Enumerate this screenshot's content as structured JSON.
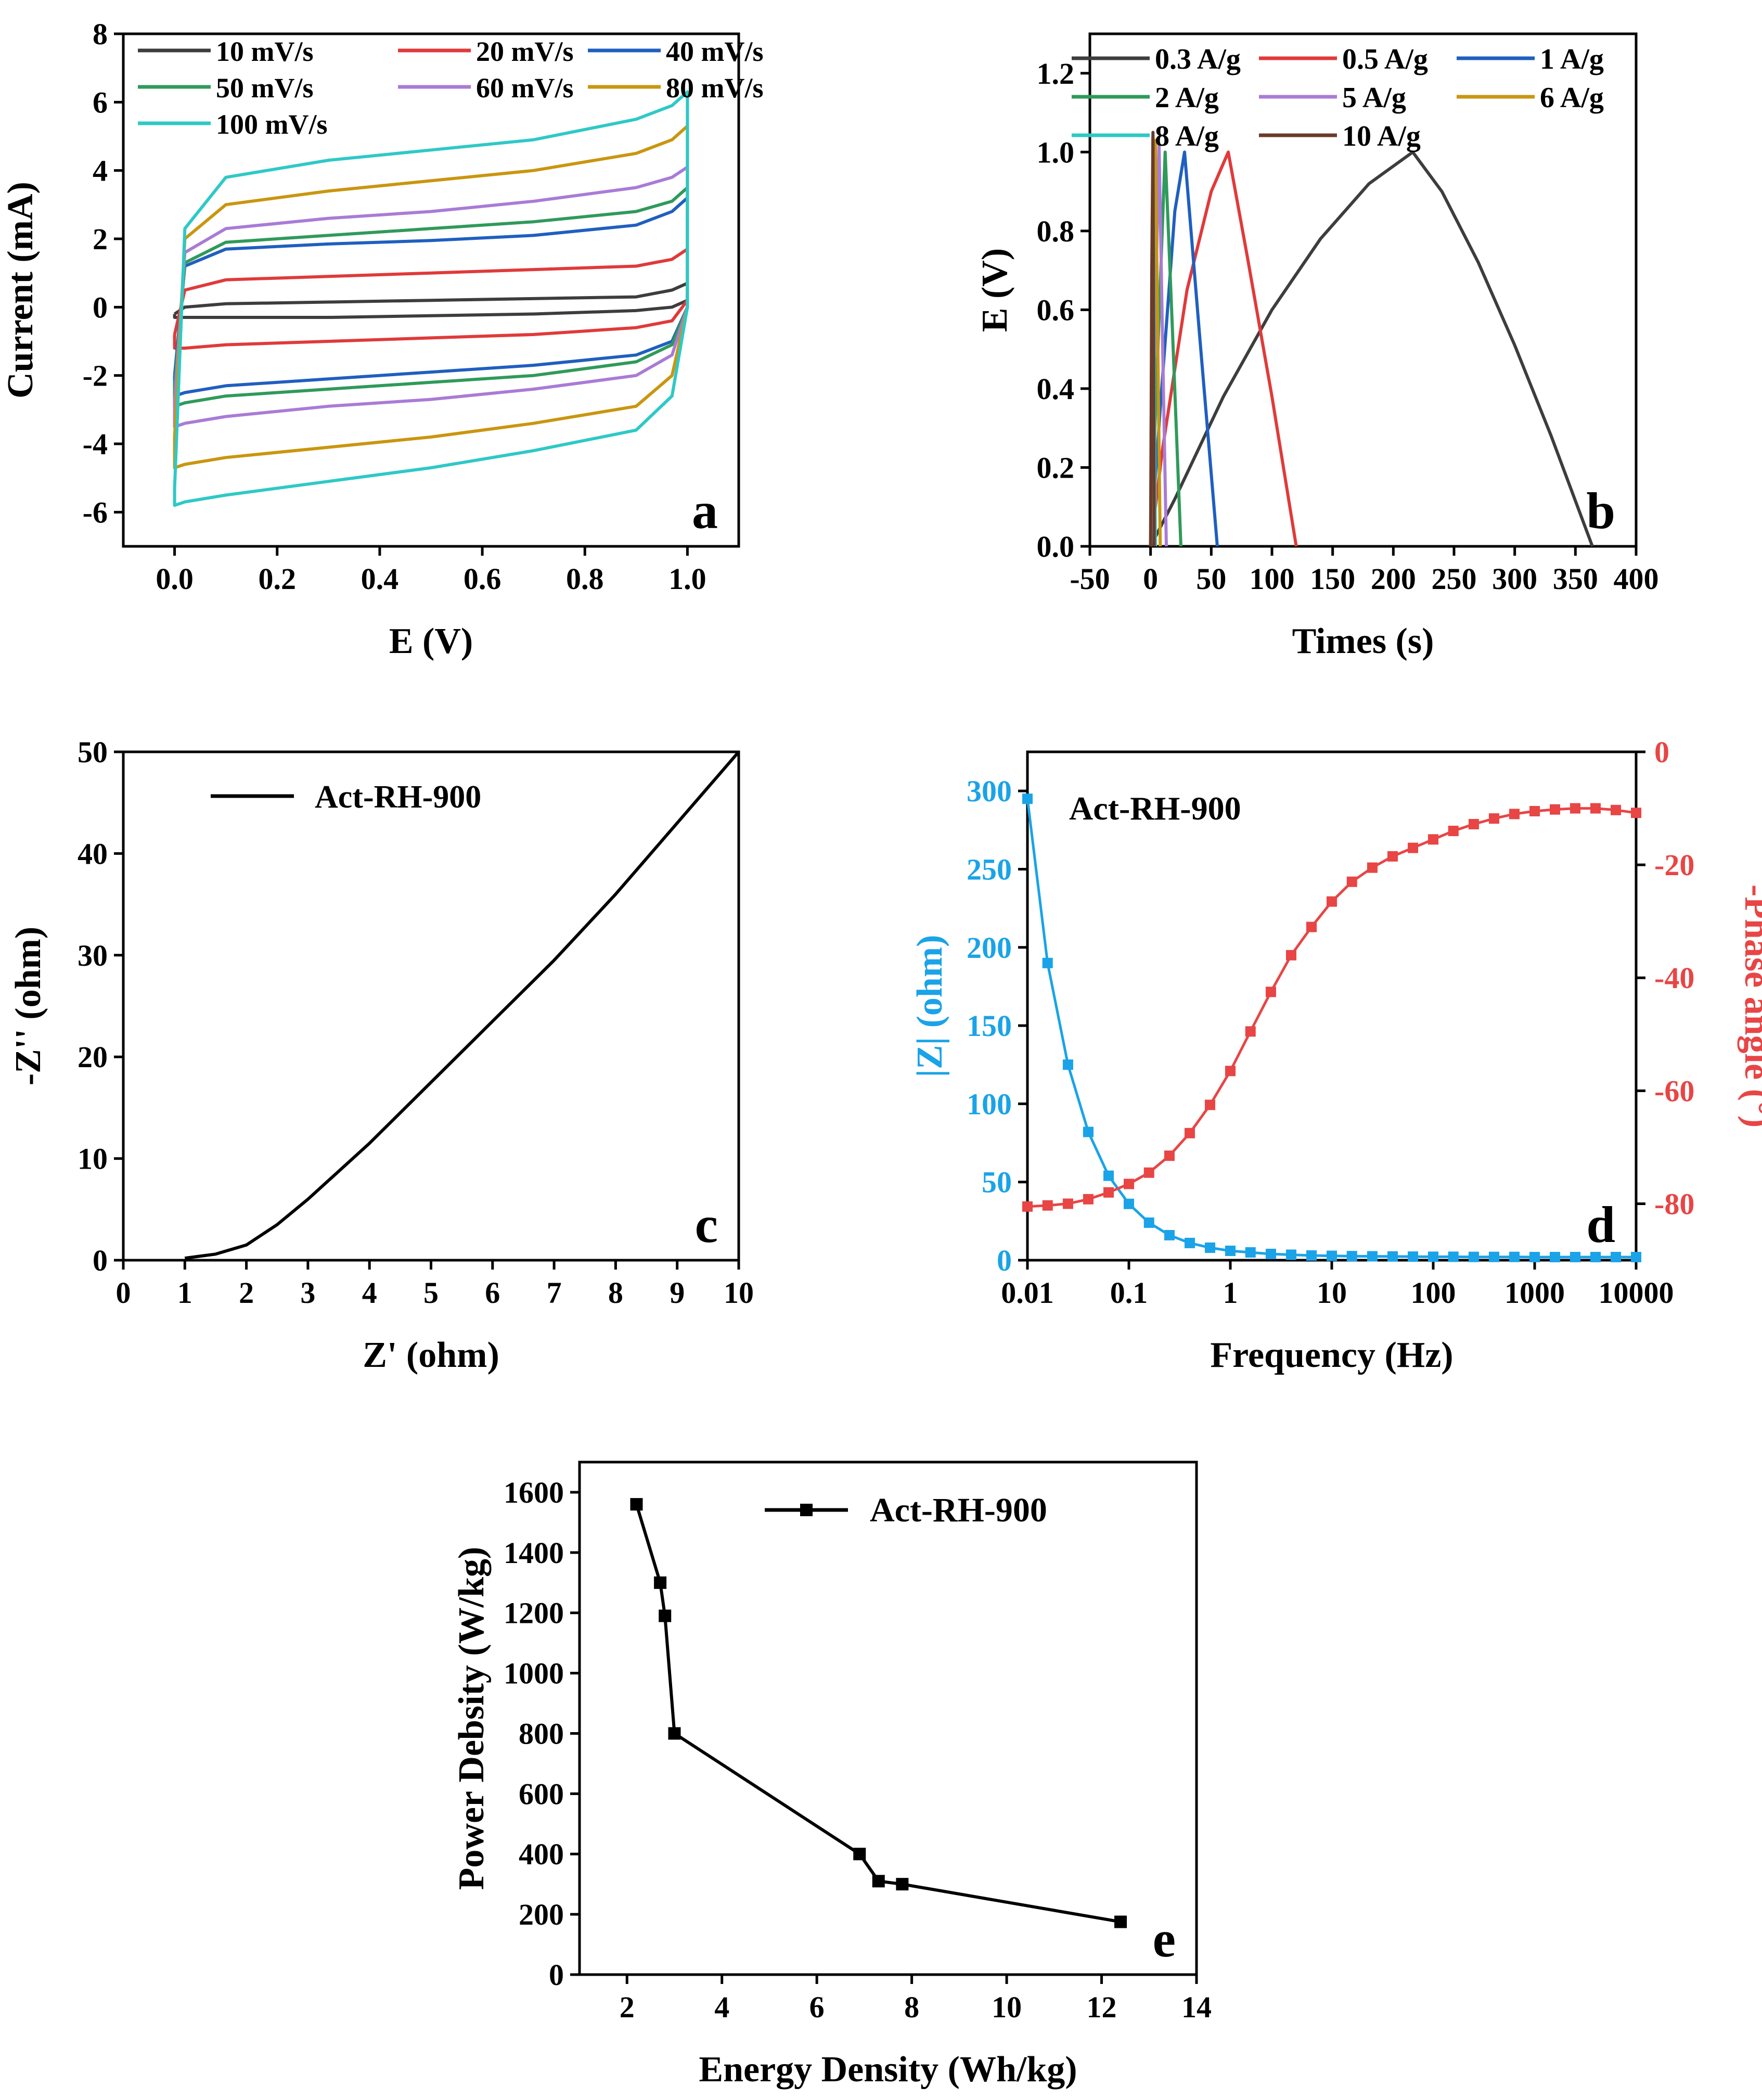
{
  "colors": {
    "black": "#3d3d3d",
    "red": "#e03a3a",
    "blue": "#1f5fbf",
    "green": "#2f9a5a",
    "purple": "#a97bd6",
    "gold": "#c9960f",
    "cyan": "#2ec9c6",
    "brown": "#6b3a2a",
    "impedance": "#1aa3e8",
    "phase": "#e84545"
  },
  "chart_data": [
    {
      "panel": "a",
      "type": "line",
      "xlabel": "E (V)",
      "ylabel": "Current (mA)",
      "xlim": [
        -0.1,
        1.1
      ],
      "ylim": [
        -7,
        8
      ],
      "xticks": [
        "0.0",
        "0.2",
        "0.4",
        "0.6",
        "0.8",
        "1.0"
      ],
      "yticks": [
        "-6",
        "-4",
        "-2",
        "0",
        "2",
        "4",
        "6",
        "8"
      ],
      "legend_location": "top",
      "series": [
        {
          "name": "10 mV/s",
          "color": "black",
          "x": [
            0,
            0.02,
            0.1,
            0.3,
            0.5,
            0.7,
            0.9,
            0.97,
            1.0
          ],
          "upper": [
            -0.2,
            0.0,
            0.1,
            0.15,
            0.2,
            0.25,
            0.3,
            0.5,
            0.7
          ],
          "lower": [
            -0.3,
            -0.3,
            -0.3,
            -0.3,
            -0.25,
            -0.2,
            -0.1,
            0.0,
            0.2
          ]
        },
        {
          "name": "20 mV/s",
          "color": "red",
          "x": [
            0,
            0.02,
            0.1,
            0.3,
            0.5,
            0.7,
            0.9,
            0.97,
            1.0
          ],
          "upper": [
            -0.8,
            0.5,
            0.8,
            0.9,
            1.0,
            1.1,
            1.2,
            1.4,
            1.7
          ],
          "lower": [
            -1.2,
            -1.2,
            -1.1,
            -1.0,
            -0.9,
            -0.8,
            -0.6,
            -0.4,
            0.2
          ]
        },
        {
          "name": "40 mV/s",
          "color": "blue",
          "x": [
            0,
            0.02,
            0.1,
            0.3,
            0.5,
            0.7,
            0.9,
            0.97,
            1.0
          ],
          "upper": [
            -2.0,
            1.2,
            1.7,
            1.85,
            1.95,
            2.1,
            2.4,
            2.8,
            3.2
          ],
          "lower": [
            -2.6,
            -2.5,
            -2.3,
            -2.1,
            -1.9,
            -1.7,
            -1.4,
            -1.0,
            0.0
          ]
        },
        {
          "name": "50 mV/s",
          "color": "green",
          "x": [
            0,
            0.02,
            0.1,
            0.3,
            0.5,
            0.7,
            0.9,
            0.97,
            1.0
          ],
          "upper": [
            -2.3,
            1.3,
            1.9,
            2.1,
            2.3,
            2.5,
            2.8,
            3.1,
            3.5
          ],
          "lower": [
            -2.9,
            -2.8,
            -2.6,
            -2.4,
            -2.2,
            -2.0,
            -1.6,
            -1.1,
            0.0
          ]
        },
        {
          "name": "60 mV/s",
          "color": "purple",
          "x": [
            0,
            0.02,
            0.1,
            0.3,
            0.5,
            0.7,
            0.9,
            0.97,
            1.0
          ],
          "upper": [
            -2.8,
            1.6,
            2.3,
            2.6,
            2.8,
            3.1,
            3.5,
            3.8,
            4.1
          ],
          "lower": [
            -3.5,
            -3.4,
            -3.2,
            -2.9,
            -2.7,
            -2.4,
            -2.0,
            -1.4,
            0.0
          ]
        },
        {
          "name": "80 mV/s",
          "color": "gold",
          "x": [
            0,
            0.02,
            0.1,
            0.3,
            0.5,
            0.7,
            0.9,
            0.97,
            1.0
          ],
          "upper": [
            -3.8,
            2.0,
            3.0,
            3.4,
            3.7,
            4.0,
            4.5,
            4.9,
            5.3
          ],
          "lower": [
            -4.7,
            -4.6,
            -4.4,
            -4.1,
            -3.8,
            -3.4,
            -2.9,
            -2.0,
            0.0
          ]
        },
        {
          "name": "100 mV/s",
          "color": "cyan",
          "x": [
            0,
            0.02,
            0.1,
            0.3,
            0.5,
            0.7,
            0.9,
            0.97,
            1.0
          ],
          "upper": [
            -5.3,
            2.3,
            3.8,
            4.3,
            4.6,
            4.9,
            5.5,
            5.9,
            6.3
          ],
          "lower": [
            -5.8,
            -5.7,
            -5.5,
            -5.1,
            -4.7,
            -4.2,
            -3.6,
            -2.6,
            0.0
          ]
        }
      ]
    },
    {
      "panel": "b",
      "type": "line",
      "xlabel": "Times (s)",
      "ylabel": "E (V)",
      "xlim": [
        -50,
        400
      ],
      "ylim": [
        0,
        1.3
      ],
      "xticks": [
        "-50",
        "0",
        "50",
        "100",
        "150",
        "200",
        "250",
        "300",
        "350",
        "400"
      ],
      "yticks": [
        "0.0",
        "0.2",
        "0.4",
        "0.6",
        "0.8",
        "1.0",
        "1.2"
      ],
      "legend_location": "top",
      "series": [
        {
          "name": "0.3 A/g",
          "color": "black",
          "x": [
            0,
            20,
            60,
            100,
            140,
            180,
            216,
            240,
            270,
            300,
            330,
            364
          ],
          "y": [
            0.0,
            0.12,
            0.38,
            0.6,
            0.78,
            0.92,
            1.0,
            0.9,
            0.72,
            0.51,
            0.28,
            0.0
          ]
        },
        {
          "name": "0.5 A/g",
          "color": "red",
          "x": [
            0,
            10,
            30,
            50,
            64,
            80,
            100,
            120
          ],
          "y": [
            0.0,
            0.25,
            0.65,
            0.9,
            1.0,
            0.73,
            0.38,
            0.0
          ]
        },
        {
          "name": "1 A/g",
          "color": "blue",
          "x": [
            0,
            8,
            20,
            28,
            40,
            55
          ],
          "y": [
            0.0,
            0.35,
            0.85,
            1.0,
            0.55,
            0.0
          ]
        },
        {
          "name": "2 A/g",
          "color": "green",
          "x": [
            0,
            6,
            12,
            18,
            25
          ],
          "y": [
            0.0,
            0.5,
            1.0,
            0.55,
            0.0
          ]
        },
        {
          "name": "5 A/g",
          "color": "purple",
          "x": [
            0,
            4,
            7,
            10,
            13
          ],
          "y": [
            0.0,
            0.6,
            1.02,
            0.5,
            0.0
          ]
        },
        {
          "name": "6 A/g",
          "color": "gold",
          "x": [
            0,
            2,
            4,
            6,
            8
          ],
          "y": [
            0.0,
            0.6,
            1.03,
            0.5,
            0.0
          ]
        },
        {
          "name": "8 A/g",
          "color": "cyan",
          "x": [
            0,
            1,
            2,
            3,
            4
          ],
          "y": [
            0.0,
            0.6,
            1.04,
            0.5,
            0.0
          ]
        },
        {
          "name": "10 A/g",
          "color": "brown",
          "x": [
            0,
            1,
            2,
            3
          ],
          "y": [
            0.0,
            0.7,
            1.05,
            0.0
          ]
        }
      ]
    },
    {
      "panel": "c",
      "type": "line",
      "xlabel": "Z' (ohm)",
      "ylabel": "-Z'' (ohm)",
      "xlim": [
        0,
        10
      ],
      "ylim": [
        0,
        50
      ],
      "xticks": [
        "0",
        "1",
        "2",
        "3",
        "4",
        "5",
        "6",
        "7",
        "8",
        "9",
        "10"
      ],
      "yticks": [
        "0",
        "10",
        "20",
        "30",
        "40",
        "50"
      ],
      "legend_location": "top-left",
      "series": [
        {
          "name": "Act-RH-900",
          "color": "#000000",
          "x": [
            1.0,
            1.5,
            2.0,
            2.5,
            3.0,
            4.0,
            5.0,
            6.0,
            7.0,
            8.0,
            9.0,
            10.0
          ],
          "y": [
            0.2,
            0.6,
            1.5,
            3.5,
            6.0,
            11.5,
            17.5,
            23.5,
            29.5,
            36.0,
            43.0,
            50.0
          ]
        }
      ]
    },
    {
      "panel": "d",
      "type": "line",
      "xlabel": "Frequency (Hz)",
      "ylabel": "|Z| (ohm)",
      "y2label": "-Phase angle (°)",
      "xscale": "log",
      "xlim": [
        0.01,
        10000
      ],
      "ylim": [
        0,
        325
      ],
      "y2lim": [
        -90,
        0
      ],
      "xticks": [
        "0.01",
        "0.1",
        "1",
        "10",
        "100",
        "1000",
        "10000"
      ],
      "yticks": [
        "0",
        "50",
        "100",
        "150",
        "200",
        "250",
        "300"
      ],
      "y2ticks": [
        "-80",
        "-60",
        "-40",
        "-20",
        "0"
      ],
      "annotation": "Act-RH-900",
      "series": [
        {
          "axis": "left",
          "color": "impedance",
          "x": [
            0.01,
            0.0158,
            0.0251,
            0.0398,
            0.0631,
            0.1,
            0.158,
            0.251,
            0.398,
            0.631,
            1,
            1.58,
            2.51,
            3.98,
            6.31,
            10,
            15.8,
            25.1,
            39.8,
            63.1,
            100,
            158,
            251,
            398,
            631,
            1000,
            1585,
            2512,
            3981,
            6310,
            10000
          ],
          "y": [
            295,
            190,
            125,
            82,
            54,
            36,
            24,
            16,
            11,
            8,
            6,
            5,
            4,
            3.5,
            3,
            2.8,
            2.6,
            2.5,
            2.4,
            2.3,
            2.2,
            2.2,
            2.1,
            2.1,
            2.1,
            2.0,
            2.0,
            2.0,
            2.0,
            2.0,
            2.0
          ]
        },
        {
          "axis": "right",
          "color": "phase",
          "x": [
            0.01,
            0.0158,
            0.0251,
            0.0398,
            0.0631,
            0.1,
            0.158,
            0.251,
            0.398,
            0.631,
            1,
            1.58,
            2.51,
            3.98,
            6.31,
            10,
            15.8,
            25.1,
            39.8,
            63.1,
            100,
            158,
            251,
            398,
            631,
            1000,
            1585,
            2512,
            3981,
            6310,
            10000
          ],
          "y": [
            -80.5,
            -80.3,
            -80,
            -79.2,
            -78,
            -76.5,
            -74.5,
            -71.5,
            -67.5,
            -62.5,
            -56.5,
            -49.5,
            -42.5,
            -36,
            -31,
            -26.5,
            -23,
            -20.5,
            -18.5,
            -17,
            -15.5,
            -14,
            -12.8,
            -11.8,
            -11,
            -10.5,
            -10.2,
            -10,
            -10,
            -10.3,
            -10.8
          ]
        }
      ]
    },
    {
      "panel": "e",
      "type": "line",
      "xlabel": "Energy Density (Wh/kg)",
      "ylabel": "Power Debsity (W/kg)",
      "xlim": [
        1,
        14
      ],
      "ylim": [
        0,
        1700
      ],
      "xticks": [
        "2",
        "4",
        "6",
        "8",
        "10",
        "12",
        "14"
      ],
      "yticks": [
        "0",
        "200",
        "400",
        "600",
        "800",
        "1000",
        "1200",
        "1400",
        "1600"
      ],
      "legend_location": "top",
      "series": [
        {
          "name": "Act-RH-900",
          "color": "#000000",
          "x": [
            2.2,
            2.7,
            2.8,
            3.0,
            6.9,
            7.3,
            7.8,
            12.4
          ],
          "y": [
            1560,
            1300,
            1190,
            800,
            400,
            310,
            300,
            175
          ]
        }
      ]
    }
  ]
}
